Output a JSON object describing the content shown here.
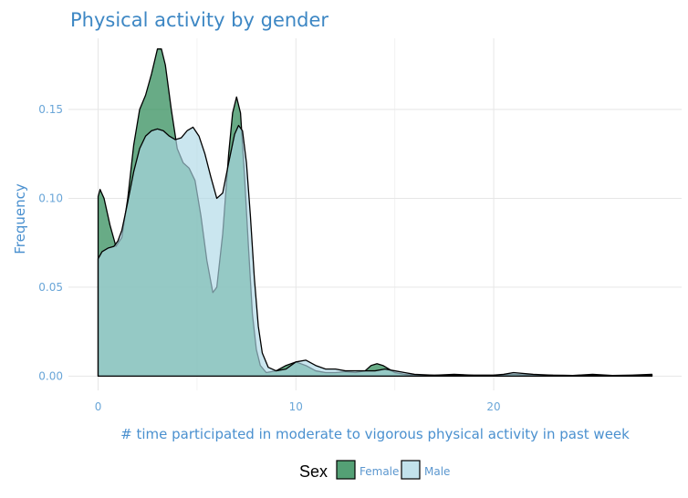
{
  "chart_data": {
    "type": "area",
    "title": "Physical activity by gender",
    "xlabel": "# time participated in moderate to vigorous physical activity in past week",
    "ylabel": "Frequency",
    "xlim": [
      -1.5,
      29.5
    ],
    "ylim": [
      -0.008,
      0.19
    ],
    "x_ticks": [
      0,
      10,
      20
    ],
    "x_tick_labels": [
      "0",
      "10",
      "20"
    ],
    "y_ticks": [
      0.0,
      0.05,
      0.1,
      0.15
    ],
    "y_tick_labels": [
      "0.00",
      "0.05",
      "0.10",
      "0.15"
    ],
    "grid": true,
    "legend": {
      "title": "Sex",
      "position": "bottom"
    },
    "series": [
      {
        "name": "Female",
        "color": "#2e8b57",
        "opacity": 0.72,
        "x": [
          0,
          0.1,
          0.3,
          0.6,
          0.9,
          1.2,
          1.5,
          1.8,
          2.1,
          2.4,
          2.7,
          3.0,
          3.2,
          3.4,
          3.7,
          4.0,
          4.3,
          4.6,
          4.9,
          5.2,
          5.5,
          5.8,
          6.0,
          6.3,
          6.6,
          6.8,
          7.0,
          7.2,
          7.4,
          7.6,
          7.8,
          8.0,
          8.2,
          8.5,
          9.0,
          9.5,
          10.0,
          10.5,
          11.0,
          11.5,
          12.0,
          12.5,
          13.0,
          13.5,
          13.8,
          14.1,
          14.4,
          14.7,
          15.0,
          15.5,
          16.0,
          17.0,
          18.0,
          19.0,
          20.0,
          21.0,
          22.0,
          23.0,
          24.0,
          25.0,
          26.0,
          27.0,
          28.0
        ],
        "y": [
          0.101,
          0.105,
          0.1,
          0.085,
          0.073,
          0.078,
          0.1,
          0.13,
          0.15,
          0.158,
          0.17,
          0.184,
          0.184,
          0.175,
          0.15,
          0.128,
          0.12,
          0.117,
          0.11,
          0.09,
          0.065,
          0.047,
          0.05,
          0.08,
          0.125,
          0.148,
          0.157,
          0.148,
          0.113,
          0.073,
          0.035,
          0.015,
          0.006,
          0.002,
          0.003,
          0.006,
          0.008,
          0.006,
          0.003,
          0.002,
          0.002,
          0.0025,
          0.002,
          0.003,
          0.006,
          0.007,
          0.006,
          0.004,
          0.002,
          0.001,
          0.0005,
          0.0005,
          0.001,
          0.0005,
          0.0005,
          0.001,
          0.0005,
          0.0005,
          0.0004,
          0.001,
          0.0004,
          0.0006,
          0.001
        ]
      },
      {
        "name": "Male",
        "color": "#add8e6",
        "opacity": 0.65,
        "x": [
          0,
          0.2,
          0.5,
          0.8,
          1.0,
          1.2,
          1.5,
          1.8,
          2.1,
          2.4,
          2.7,
          3.0,
          3.3,
          3.6,
          3.9,
          4.2,
          4.5,
          4.8,
          5.1,
          5.4,
          5.7,
          6.0,
          6.3,
          6.6,
          6.9,
          7.1,
          7.3,
          7.5,
          7.7,
          7.9,
          8.1,
          8.3,
          8.6,
          9.0,
          9.5,
          10.0,
          10.5,
          11.0,
          11.5,
          12.0,
          12.5,
          13.0,
          13.5,
          14.0,
          14.5,
          15.0,
          15.5,
          16.0,
          17.0,
          18.0,
          19.0,
          20.0,
          20.5,
          21.0,
          22.0,
          23.0,
          24.0,
          25.0,
          26.0,
          27.0,
          28.0
        ],
        "y": [
          0.066,
          0.07,
          0.072,
          0.073,
          0.076,
          0.082,
          0.098,
          0.115,
          0.128,
          0.135,
          0.138,
          0.139,
          0.138,
          0.135,
          0.133,
          0.134,
          0.138,
          0.14,
          0.135,
          0.125,
          0.112,
          0.1,
          0.103,
          0.12,
          0.136,
          0.141,
          0.138,
          0.12,
          0.09,
          0.055,
          0.028,
          0.013,
          0.005,
          0.003,
          0.004,
          0.008,
          0.009,
          0.006,
          0.004,
          0.004,
          0.003,
          0.003,
          0.003,
          0.003,
          0.004,
          0.003,
          0.002,
          0.001,
          0.0005,
          0.0006,
          0.0005,
          0.0006,
          0.001,
          0.002,
          0.001,
          0.0005,
          0.0004,
          0.0003,
          0.0003,
          0.0003,
          0.0005
        ]
      }
    ]
  }
}
